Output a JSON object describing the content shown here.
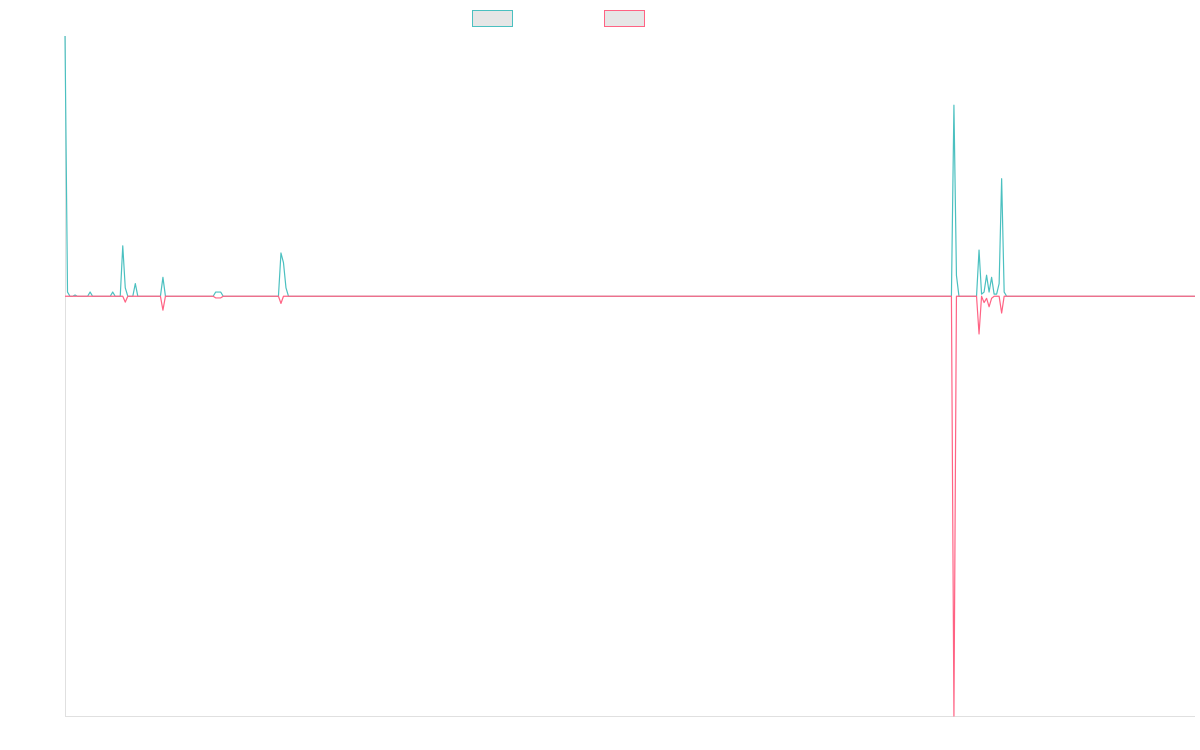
{
  "chart_data": {
    "type": "line",
    "title": "",
    "xlabel": "",
    "ylabel": "",
    "legend_position": "top-center",
    "grid": false,
    "ylim": [
      -1,
      0.62
    ],
    "x_count": 451,
    "series": [
      {
        "key": "up",
        "color": "#4bc0c0",
        "legend_fill": "#e6e6e6",
        "points": [
          [
            0,
            0.62
          ],
          [
            1,
            0.01
          ],
          [
            2,
            0
          ],
          [
            3,
            0
          ],
          [
            4,
            0.003
          ],
          [
            5,
            0
          ],
          [
            6,
            0
          ],
          [
            7,
            0
          ],
          [
            8,
            0
          ],
          [
            9,
            0
          ],
          [
            10,
            0.01
          ],
          [
            11,
            0
          ],
          [
            12,
            0
          ],
          [
            18,
            0
          ],
          [
            19,
            0.01
          ],
          [
            20,
            0
          ],
          [
            22,
            0
          ],
          [
            23,
            0.12
          ],
          [
            24,
            0.02
          ],
          [
            25,
            0
          ],
          [
            27,
            0
          ],
          [
            28,
            0.03
          ],
          [
            29,
            0
          ],
          [
            38,
            0
          ],
          [
            39,
            0.045
          ],
          [
            40,
            0
          ],
          [
            59,
            0
          ],
          [
            60,
            0.01
          ],
          [
            62,
            0.01
          ],
          [
            63,
            0
          ],
          [
            85,
            0
          ],
          [
            86,
            0.103
          ],
          [
            87,
            0.08
          ],
          [
            88,
            0.02
          ],
          [
            89,
            0
          ],
          [
            353,
            0
          ],
          [
            354,
            0.455
          ],
          [
            355,
            0.05
          ],
          [
            356,
            0
          ],
          [
            363,
            0
          ],
          [
            364,
            0.11
          ],
          [
            365,
            0.005
          ],
          [
            366,
            0.01
          ],
          [
            367,
            0.05
          ],
          [
            368,
            0.01
          ],
          [
            369,
            0.045
          ],
          [
            370,
            0.005
          ],
          [
            371,
            0.005
          ],
          [
            372,
            0.03
          ],
          [
            373,
            0.28
          ],
          [
            374,
            0.01
          ],
          [
            375,
            0
          ],
          [
            450,
            0
          ]
        ]
      },
      {
        "key": "down",
        "color": "#ff6384",
        "legend_fill": "#e6e6e6",
        "points": [
          [
            0,
            0
          ],
          [
            23,
            0
          ],
          [
            24,
            -0.014
          ],
          [
            25,
            0
          ],
          [
            38,
            0
          ],
          [
            39,
            -0.033
          ],
          [
            40,
            0
          ],
          [
            59,
            0
          ],
          [
            60,
            -0.004
          ],
          [
            62,
            -0.004
          ],
          [
            63,
            0
          ],
          [
            85,
            0
          ],
          [
            86,
            -0.017
          ],
          [
            87,
            0
          ],
          [
            353,
            0
          ],
          [
            354,
            -1
          ],
          [
            355,
            0
          ],
          [
            363,
            0
          ],
          [
            364,
            -0.09
          ],
          [
            365,
            0
          ],
          [
            366,
            -0.015
          ],
          [
            367,
            -0.005
          ],
          [
            368,
            -0.025
          ],
          [
            369,
            -0.005
          ],
          [
            370,
            0
          ],
          [
            372,
            0
          ],
          [
            373,
            -0.04
          ],
          [
            374,
            0
          ],
          [
            450,
            0
          ]
        ]
      }
    ]
  }
}
